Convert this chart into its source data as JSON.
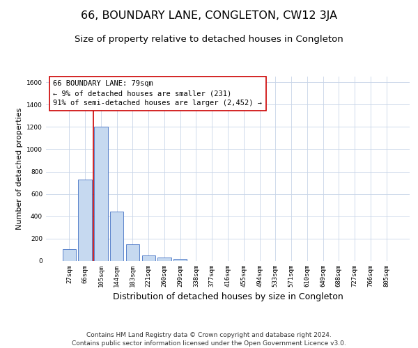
{
  "title": "66, BOUNDARY LANE, CONGLETON, CW12 3JA",
  "subtitle": "Size of property relative to detached houses in Congleton",
  "xlabel": "Distribution of detached houses by size in Congleton",
  "ylabel": "Number of detached properties",
  "categories": [
    "27sqm",
    "66sqm",
    "105sqm",
    "144sqm",
    "183sqm",
    "221sqm",
    "260sqm",
    "299sqm",
    "338sqm",
    "377sqm",
    "416sqm",
    "455sqm",
    "494sqm",
    "533sqm",
    "571sqm",
    "610sqm",
    "649sqm",
    "688sqm",
    "727sqm",
    "766sqm",
    "805sqm"
  ],
  "values": [
    105,
    730,
    1200,
    440,
    150,
    50,
    30,
    20,
    0,
    0,
    0,
    0,
    0,
    0,
    0,
    0,
    0,
    0,
    0,
    0,
    0
  ],
  "bar_color": "#c6d9f0",
  "bar_edge_color": "#4472c4",
  "grid_color": "#c8d4e8",
  "background_color": "#ffffff",
  "annotation_box_text": "66 BOUNDARY LANE: 79sqm\n← 9% of detached houses are smaller (231)\n91% of semi-detached houses are larger (2,452) →",
  "annotation_box_color": "#cc0000",
  "vline_color": "#cc0000",
  "ylim": [
    0,
    1650
  ],
  "yticks": [
    0,
    200,
    400,
    600,
    800,
    1000,
    1200,
    1400,
    1600
  ],
  "footer_line1": "Contains HM Land Registry data © Crown copyright and database right 2024.",
  "footer_line2": "Contains public sector information licensed under the Open Government Licence v3.0.",
  "title_fontsize": 11.5,
  "subtitle_fontsize": 9.5,
  "annotation_fontsize": 7.5,
  "xlabel_fontsize": 9,
  "ylabel_fontsize": 8,
  "footer_fontsize": 6.5,
  "tick_fontsize": 6.5
}
